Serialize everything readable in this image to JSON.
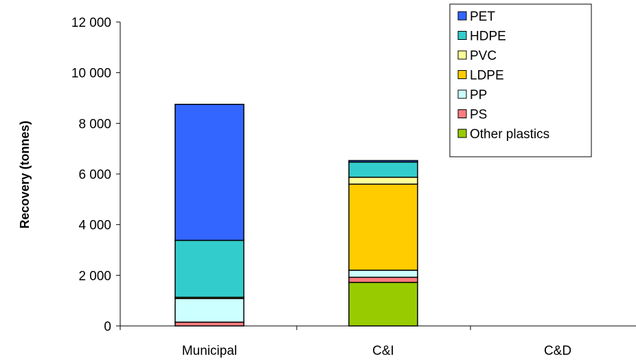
{
  "chart_data": {
    "type": "bar",
    "stacked": true,
    "title": "",
    "xlabel": "",
    "ylabel": "Recovery (tonnes)",
    "ylim": [
      0,
      12000
    ],
    "yticks": [
      0,
      2000,
      4000,
      6000,
      8000,
      10000,
      12000
    ],
    "ytick_labels": [
      "0",
      "2 000",
      "4 000",
      "6 000",
      "8 000",
      "10 000",
      "12 000"
    ],
    "categories": [
      "Municipal",
      "C&I",
      "C&D"
    ],
    "legend_position": "top-right",
    "grid": false,
    "series": [
      {
        "name": "Other plastics",
        "color": "#99cc00",
        "values": [
          0,
          1720,
          0
        ]
      },
      {
        "name": "PS",
        "color": "#ff7c80",
        "values": [
          150,
          200,
          0
        ]
      },
      {
        "name": "PP",
        "color": "#ccffff",
        "values": [
          930,
          280,
          0
        ]
      },
      {
        "name": "LDPE",
        "color": "#ffcc00",
        "values": [
          50,
          3400,
          0
        ]
      },
      {
        "name": "PVC",
        "color": "#ffff99",
        "values": [
          0,
          270,
          0
        ]
      },
      {
        "name": "HDPE",
        "color": "#33cccc",
        "values": [
          2250,
          600,
          0
        ]
      },
      {
        "name": "PET",
        "color": "#3366ff",
        "values": [
          5370,
          60,
          0
        ]
      }
    ],
    "legend_order": [
      "PET",
      "HDPE",
      "PVC",
      "LDPE",
      "PP",
      "PS",
      "Other plastics"
    ]
  }
}
